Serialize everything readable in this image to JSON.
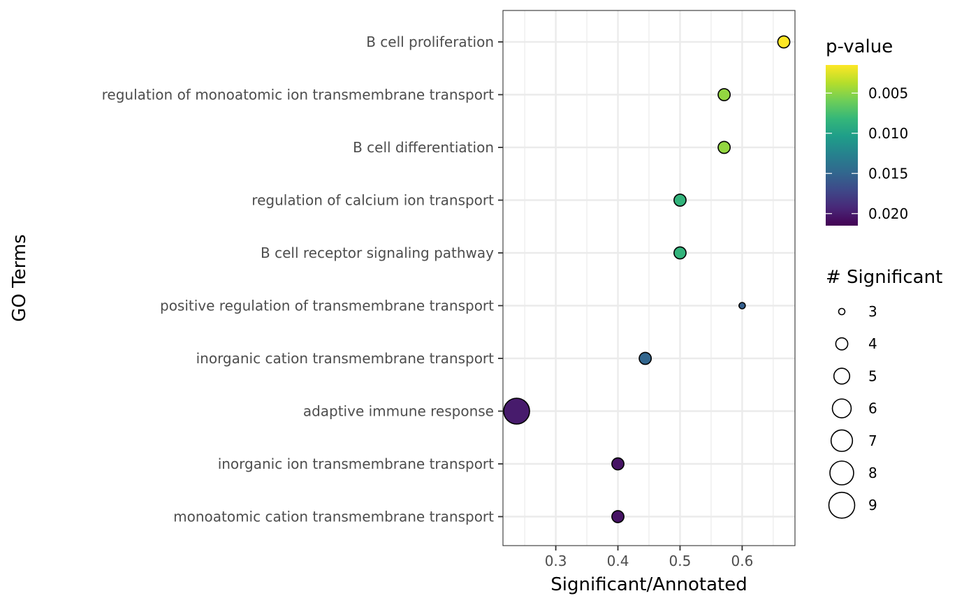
{
  "chart_data": {
    "type": "scatter",
    "xlabel": "Significant/Annotated",
    "ylabel": "GO Terms",
    "xlim": [
      0.215,
      0.685
    ],
    "x_ticks": [
      "0.3",
      "0.4",
      "0.5",
      "0.6"
    ],
    "x_tick_values": [
      0.3,
      0.4,
      0.5,
      0.6
    ],
    "grid": true,
    "terms": [
      "B cell proliferation",
      "regulation of monoatomic ion transmembrane transport",
      "B cell differentiation",
      "regulation of calcium ion transport",
      "B cell receptor signaling pathway",
      "positive regulation of transmembrane transport",
      "inorganic cation transmembrane transport",
      "adaptive immune response",
      "inorganic ion transmembrane transport",
      "monoatomic cation transmembrane transport"
    ],
    "points": [
      {
        "term": "B cell proliferation",
        "x": 0.667,
        "significant": 4,
        "p_value": 0.0015
      },
      {
        "term": "regulation of monoatomic ion transmembrane transport",
        "x": 0.571,
        "significant": 4,
        "p_value": 0.0048
      },
      {
        "term": "B cell differentiation",
        "x": 0.571,
        "significant": 4,
        "p_value": 0.0048
      },
      {
        "term": "regulation of calcium ion transport",
        "x": 0.5,
        "significant": 4,
        "p_value": 0.0085
      },
      {
        "term": "B cell receptor signaling pathway",
        "x": 0.5,
        "significant": 4,
        "p_value": 0.0085
      },
      {
        "term": "positive regulation of transmembrane transport",
        "x": 0.6,
        "significant": 3,
        "p_value": 0.0155
      },
      {
        "term": "inorganic cation transmembrane transport",
        "x": 0.444,
        "significant": 4,
        "p_value": 0.015
      },
      {
        "term": "adaptive immune response",
        "x": 0.237,
        "significant": 9,
        "p_value": 0.02
      },
      {
        "term": "inorganic ion transmembrane transport",
        "x": 0.4,
        "significant": 4,
        "p_value": 0.0205
      },
      {
        "term": "monoatomic cation transmembrane transport",
        "x": 0.4,
        "significant": 4,
        "p_value": 0.0205
      }
    ],
    "color_legend": {
      "title": "p-value",
      "range": [
        0.0015,
        0.0215
      ],
      "labels": [
        "0.005",
        "0.010",
        "0.015",
        "0.020"
      ],
      "label_values": [
        0.005,
        0.01,
        0.015,
        0.02
      ],
      "palette": [
        "#fde725",
        "#b5de2b",
        "#6ece58",
        "#35b779",
        "#1f9e89",
        "#26828e",
        "#31688e",
        "#3e4989",
        "#482878",
        "#440154"
      ]
    },
    "size_legend": {
      "title": "# Significant",
      "labels": [
        "3",
        "4",
        "5",
        "6",
        "7",
        "8",
        "9"
      ],
      "values": [
        3,
        4,
        5,
        6,
        7,
        8,
        9
      ]
    }
  }
}
